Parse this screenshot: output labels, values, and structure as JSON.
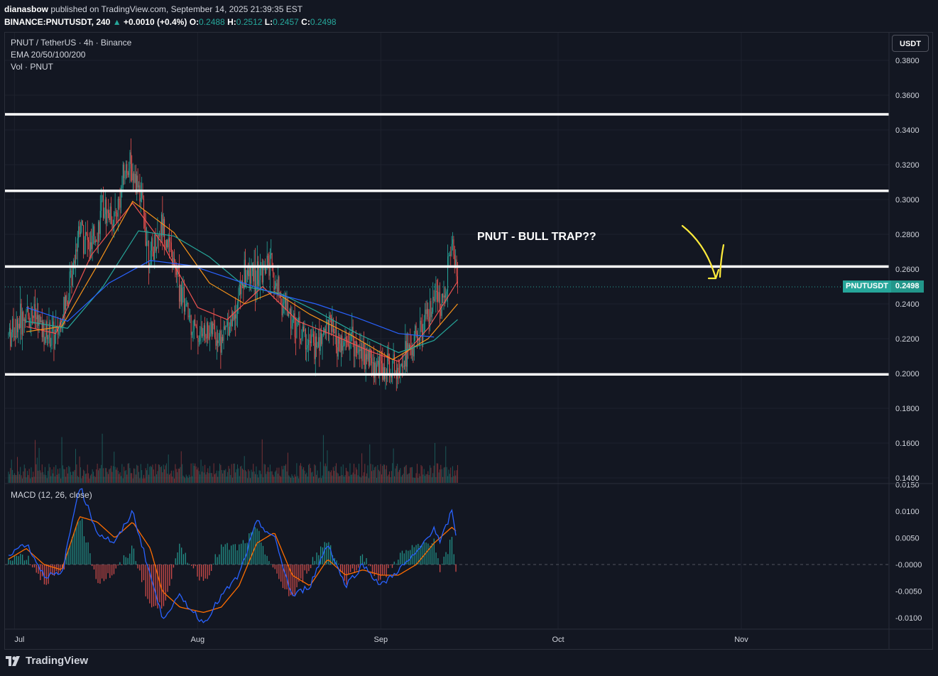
{
  "header": {
    "author": "dianasbow",
    "published": "published on TradingView.com, September 14, 2025 21:39:35 EST",
    "symbol": "BINANCE:PNUTUSDT, 240",
    "change": "+0.0010 (+0.4%)",
    "o_label": "O:",
    "o_value": "0.2488",
    "h_label": "H:",
    "h_value": "0.2512",
    "l_label": "L:",
    "l_value": "0.2457",
    "c_label": "C:",
    "c_value": "0.2498",
    "last_price": "0.2498"
  },
  "legend": {
    "title": "PNUT / TetherUS · 4h · Binance",
    "ema": "EMA 20/50/100/200",
    "vol": "Vol · PNUT",
    "macd": "MACD (12, 26, close)"
  },
  "price_scale": {
    "unit_button": "USDT",
    "symbol_tag": "PNUTUSDT",
    "price_tag": "0.2498"
  },
  "annotation": {
    "text": "PNUT - BULL TRAP??"
  },
  "footer": {
    "brand": "TradingView"
  },
  "colors": {
    "background": "#131722",
    "up": "#26a69a",
    "down": "#ef5350",
    "ema20": "#ef5350",
    "ema50": "#f7931a",
    "ema100": "#26a69a",
    "ema200": "#2962ff",
    "macd": "#2962ff",
    "signal": "#ff6d00",
    "arrow": "#ffeb3b",
    "levels": "#ffffff"
  },
  "chart_data": {
    "type": "candlestick",
    "interval": "4h",
    "x_ticks": [
      "Jul",
      "Aug",
      "Sep",
      "Oct",
      "Nov"
    ],
    "price_ticks": [
      "0.3800",
      "0.3600",
      "0.3400",
      "0.3200",
      "0.3000",
      "0.2800",
      "0.2600",
      "0.2400",
      "0.2200",
      "0.2000",
      "0.1800",
      "0.1600",
      "0.1400"
    ],
    "price_range": [
      0.14,
      0.385
    ],
    "horizontal_levels": [
      0.349,
      0.305,
      0.2615,
      0.1995
    ],
    "macd_ticks": [
      "0.0150",
      "0.0100",
      "0.0050",
      "-0.0000",
      "-0.0050",
      "-0.0100"
    ],
    "macd_range": [
      -0.0125,
      0.0155
    ],
    "price_path": [
      {
        "d": "2025-06-30",
        "p": 0.222
      },
      {
        "d": "2025-07-02",
        "p": 0.23
      },
      {
        "d": "2025-07-04",
        "p": 0.235
      },
      {
        "d": "2025-07-06",
        "p": 0.224
      },
      {
        "d": "2025-07-08",
        "p": 0.22
      },
      {
        "d": "2025-07-10",
        "p": 0.245
      },
      {
        "d": "2025-07-12",
        "p": 0.286
      },
      {
        "d": "2025-07-14",
        "p": 0.27
      },
      {
        "d": "2025-07-16",
        "p": 0.295
      },
      {
        "d": "2025-07-18",
        "p": 0.288
      },
      {
        "d": "2025-07-20",
        "p": 0.32
      },
      {
        "d": "2025-07-22",
        "p": 0.31
      },
      {
        "d": "2025-07-24",
        "p": 0.265
      },
      {
        "d": "2025-07-26",
        "p": 0.287
      },
      {
        "d": "2025-07-28",
        "p": 0.262
      },
      {
        "d": "2025-07-30",
        "p": 0.237
      },
      {
        "d": "2025-08-01",
        "p": 0.222
      },
      {
        "d": "2025-08-03",
        "p": 0.225
      },
      {
        "d": "2025-08-05",
        "p": 0.22
      },
      {
        "d": "2025-08-07",
        "p": 0.234
      },
      {
        "d": "2025-08-09",
        "p": 0.257
      },
      {
        "d": "2025-08-11",
        "p": 0.254
      },
      {
        "d": "2025-08-13",
        "p": 0.263
      },
      {
        "d": "2025-08-15",
        "p": 0.243
      },
      {
        "d": "2025-08-17",
        "p": 0.232
      },
      {
        "d": "2025-08-19",
        "p": 0.221
      },
      {
        "d": "2025-08-21",
        "p": 0.214
      },
      {
        "d": "2025-08-23",
        "p": 0.229
      },
      {
        "d": "2025-08-25",
        "p": 0.213
      },
      {
        "d": "2025-08-27",
        "p": 0.22
      },
      {
        "d": "2025-08-29",
        "p": 0.213
      },
      {
        "d": "2025-08-31",
        "p": 0.205
      },
      {
        "d": "2025-09-02",
        "p": 0.202
      },
      {
        "d": "2025-09-04",
        "p": 0.207
      },
      {
        "d": "2025-09-06",
        "p": 0.214
      },
      {
        "d": "2025-09-08",
        "p": 0.225
      },
      {
        "d": "2025-09-10",
        "p": 0.238
      },
      {
        "d": "2025-09-12",
        "p": 0.248
      },
      {
        "d": "2025-09-13",
        "p": 0.278
      },
      {
        "d": "2025-09-14",
        "p": 0.2498
      }
    ],
    "ema": [
      {
        "period": 20,
        "points": [
          {
            "d": "2025-07-03",
            "p": 0.227
          },
          {
            "d": "2025-07-08",
            "p": 0.223
          },
          {
            "d": "2025-07-14",
            "p": 0.268
          },
          {
            "d": "2025-07-21",
            "p": 0.298
          },
          {
            "d": "2025-07-26",
            "p": 0.275
          },
          {
            "d": "2025-08-01",
            "p": 0.238
          },
          {
            "d": "2025-08-06",
            "p": 0.231
          },
          {
            "d": "2025-08-12",
            "p": 0.25
          },
          {
            "d": "2025-08-18",
            "p": 0.23
          },
          {
            "d": "2025-08-24",
            "p": 0.222
          },
          {
            "d": "2025-08-30",
            "p": 0.213
          },
          {
            "d": "2025-09-04",
            "p": 0.207
          },
          {
            "d": "2025-09-09",
            "p": 0.226
          },
          {
            "d": "2025-09-14",
            "p": 0.253
          }
        ]
      },
      {
        "period": 50,
        "points": [
          {
            "d": "2025-07-03",
            "p": 0.224
          },
          {
            "d": "2025-07-09",
            "p": 0.227
          },
          {
            "d": "2025-07-15",
            "p": 0.262
          },
          {
            "d": "2025-07-21",
            "p": 0.299
          },
          {
            "d": "2025-07-28",
            "p": 0.281
          },
          {
            "d": "2025-08-03",
            "p": 0.252
          },
          {
            "d": "2025-08-09",
            "p": 0.24
          },
          {
            "d": "2025-08-14",
            "p": 0.247
          },
          {
            "d": "2025-08-20",
            "p": 0.234
          },
          {
            "d": "2025-08-27",
            "p": 0.222
          },
          {
            "d": "2025-09-03",
            "p": 0.208
          },
          {
            "d": "2025-09-09",
            "p": 0.22
          },
          {
            "d": "2025-09-14",
            "p": 0.24
          }
        ]
      },
      {
        "period": 100,
        "points": [
          {
            "d": "2025-07-03",
            "p": 0.23
          },
          {
            "d": "2025-07-10",
            "p": 0.226
          },
          {
            "d": "2025-07-16",
            "p": 0.25
          },
          {
            "d": "2025-07-22",
            "p": 0.282
          },
          {
            "d": "2025-07-28",
            "p": 0.279
          },
          {
            "d": "2025-08-03",
            "p": 0.267
          },
          {
            "d": "2025-08-09",
            "p": 0.25
          },
          {
            "d": "2025-08-15",
            "p": 0.246
          },
          {
            "d": "2025-08-21",
            "p": 0.236
          },
          {
            "d": "2025-08-28",
            "p": 0.223
          },
          {
            "d": "2025-09-04",
            "p": 0.212
          },
          {
            "d": "2025-09-10",
            "p": 0.219
          },
          {
            "d": "2025-09-14",
            "p": 0.231
          }
        ]
      },
      {
        "period": 200,
        "points": [
          {
            "d": "2025-07-03",
            "p": 0.238
          },
          {
            "d": "2025-07-10",
            "p": 0.23
          },
          {
            "d": "2025-07-17",
            "p": 0.252
          },
          {
            "d": "2025-07-24",
            "p": 0.265
          },
          {
            "d": "2025-07-31",
            "p": 0.262
          },
          {
            "d": "2025-08-07",
            "p": 0.254
          },
          {
            "d": "2025-08-14",
            "p": 0.246
          },
          {
            "d": "2025-08-21",
            "p": 0.24
          },
          {
            "d": "2025-08-28",
            "p": 0.232
          },
          {
            "d": "2025-09-04",
            "p": 0.223
          },
          {
            "d": "2025-09-10",
            "p": 0.221
          }
        ]
      }
    ],
    "macd_path": [
      {
        "d": "2025-06-30",
        "m": 0.002,
        "s": 0.001
      },
      {
        "d": "2025-07-03",
        "m": 0.004,
        "s": 0.003
      },
      {
        "d": "2025-07-06",
        "m": -0.002,
        "s": 0.0
      },
      {
        "d": "2025-07-09",
        "m": -0.002,
        "s": -0.001
      },
      {
        "d": "2025-07-12",
        "m": 0.015,
        "s": 0.009
      },
      {
        "d": "2025-07-15",
        "m": 0.006,
        "s": 0.008
      },
      {
        "d": "2025-07-18",
        "m": 0.004,
        "s": 0.005
      },
      {
        "d": "2025-07-21",
        "m": 0.01,
        "s": 0.008
      },
      {
        "d": "2025-07-24",
        "m": -0.002,
        "s": 0.003
      },
      {
        "d": "2025-07-26",
        "m": -0.01,
        "s": -0.005
      },
      {
        "d": "2025-07-29",
        "m": -0.006,
        "s": -0.008
      },
      {
        "d": "2025-08-02",
        "m": -0.011,
        "s": -0.009
      },
      {
        "d": "2025-08-05",
        "m": -0.006,
        "s": -0.008
      },
      {
        "d": "2025-08-08",
        "m": -0.002,
        "s": -0.004
      },
      {
        "d": "2025-08-11",
        "m": 0.008,
        "s": 0.004
      },
      {
        "d": "2025-08-14",
        "m": 0.005,
        "s": 0.006
      },
      {
        "d": "2025-08-17",
        "m": -0.006,
        "s": -0.002
      },
      {
        "d": "2025-08-20",
        "m": -0.004,
        "s": -0.004
      },
      {
        "d": "2025-08-23",
        "m": 0.004,
        "s": 0.001
      },
      {
        "d": "2025-08-26",
        "m": -0.004,
        "s": -0.002
      },
      {
        "d": "2025-08-29",
        "m": 0.0,
        "s": -0.001
      },
      {
        "d": "2025-09-01",
        "m": -0.004,
        "s": -0.002
      },
      {
        "d": "2025-09-04",
        "m": -0.001,
        "s": -0.002
      },
      {
        "d": "2025-09-07",
        "m": 0.002,
        "s": 0.0
      },
      {
        "d": "2025-09-10",
        "m": 0.007,
        "s": 0.004
      },
      {
        "d": "2025-09-11",
        "m": 0.004,
        "s": 0.005
      },
      {
        "d": "2025-09-13",
        "m": 0.01,
        "s": 0.007
      },
      {
        "d": "2025-09-14",
        "m": 0.004,
        "s": 0.006
      }
    ]
  }
}
